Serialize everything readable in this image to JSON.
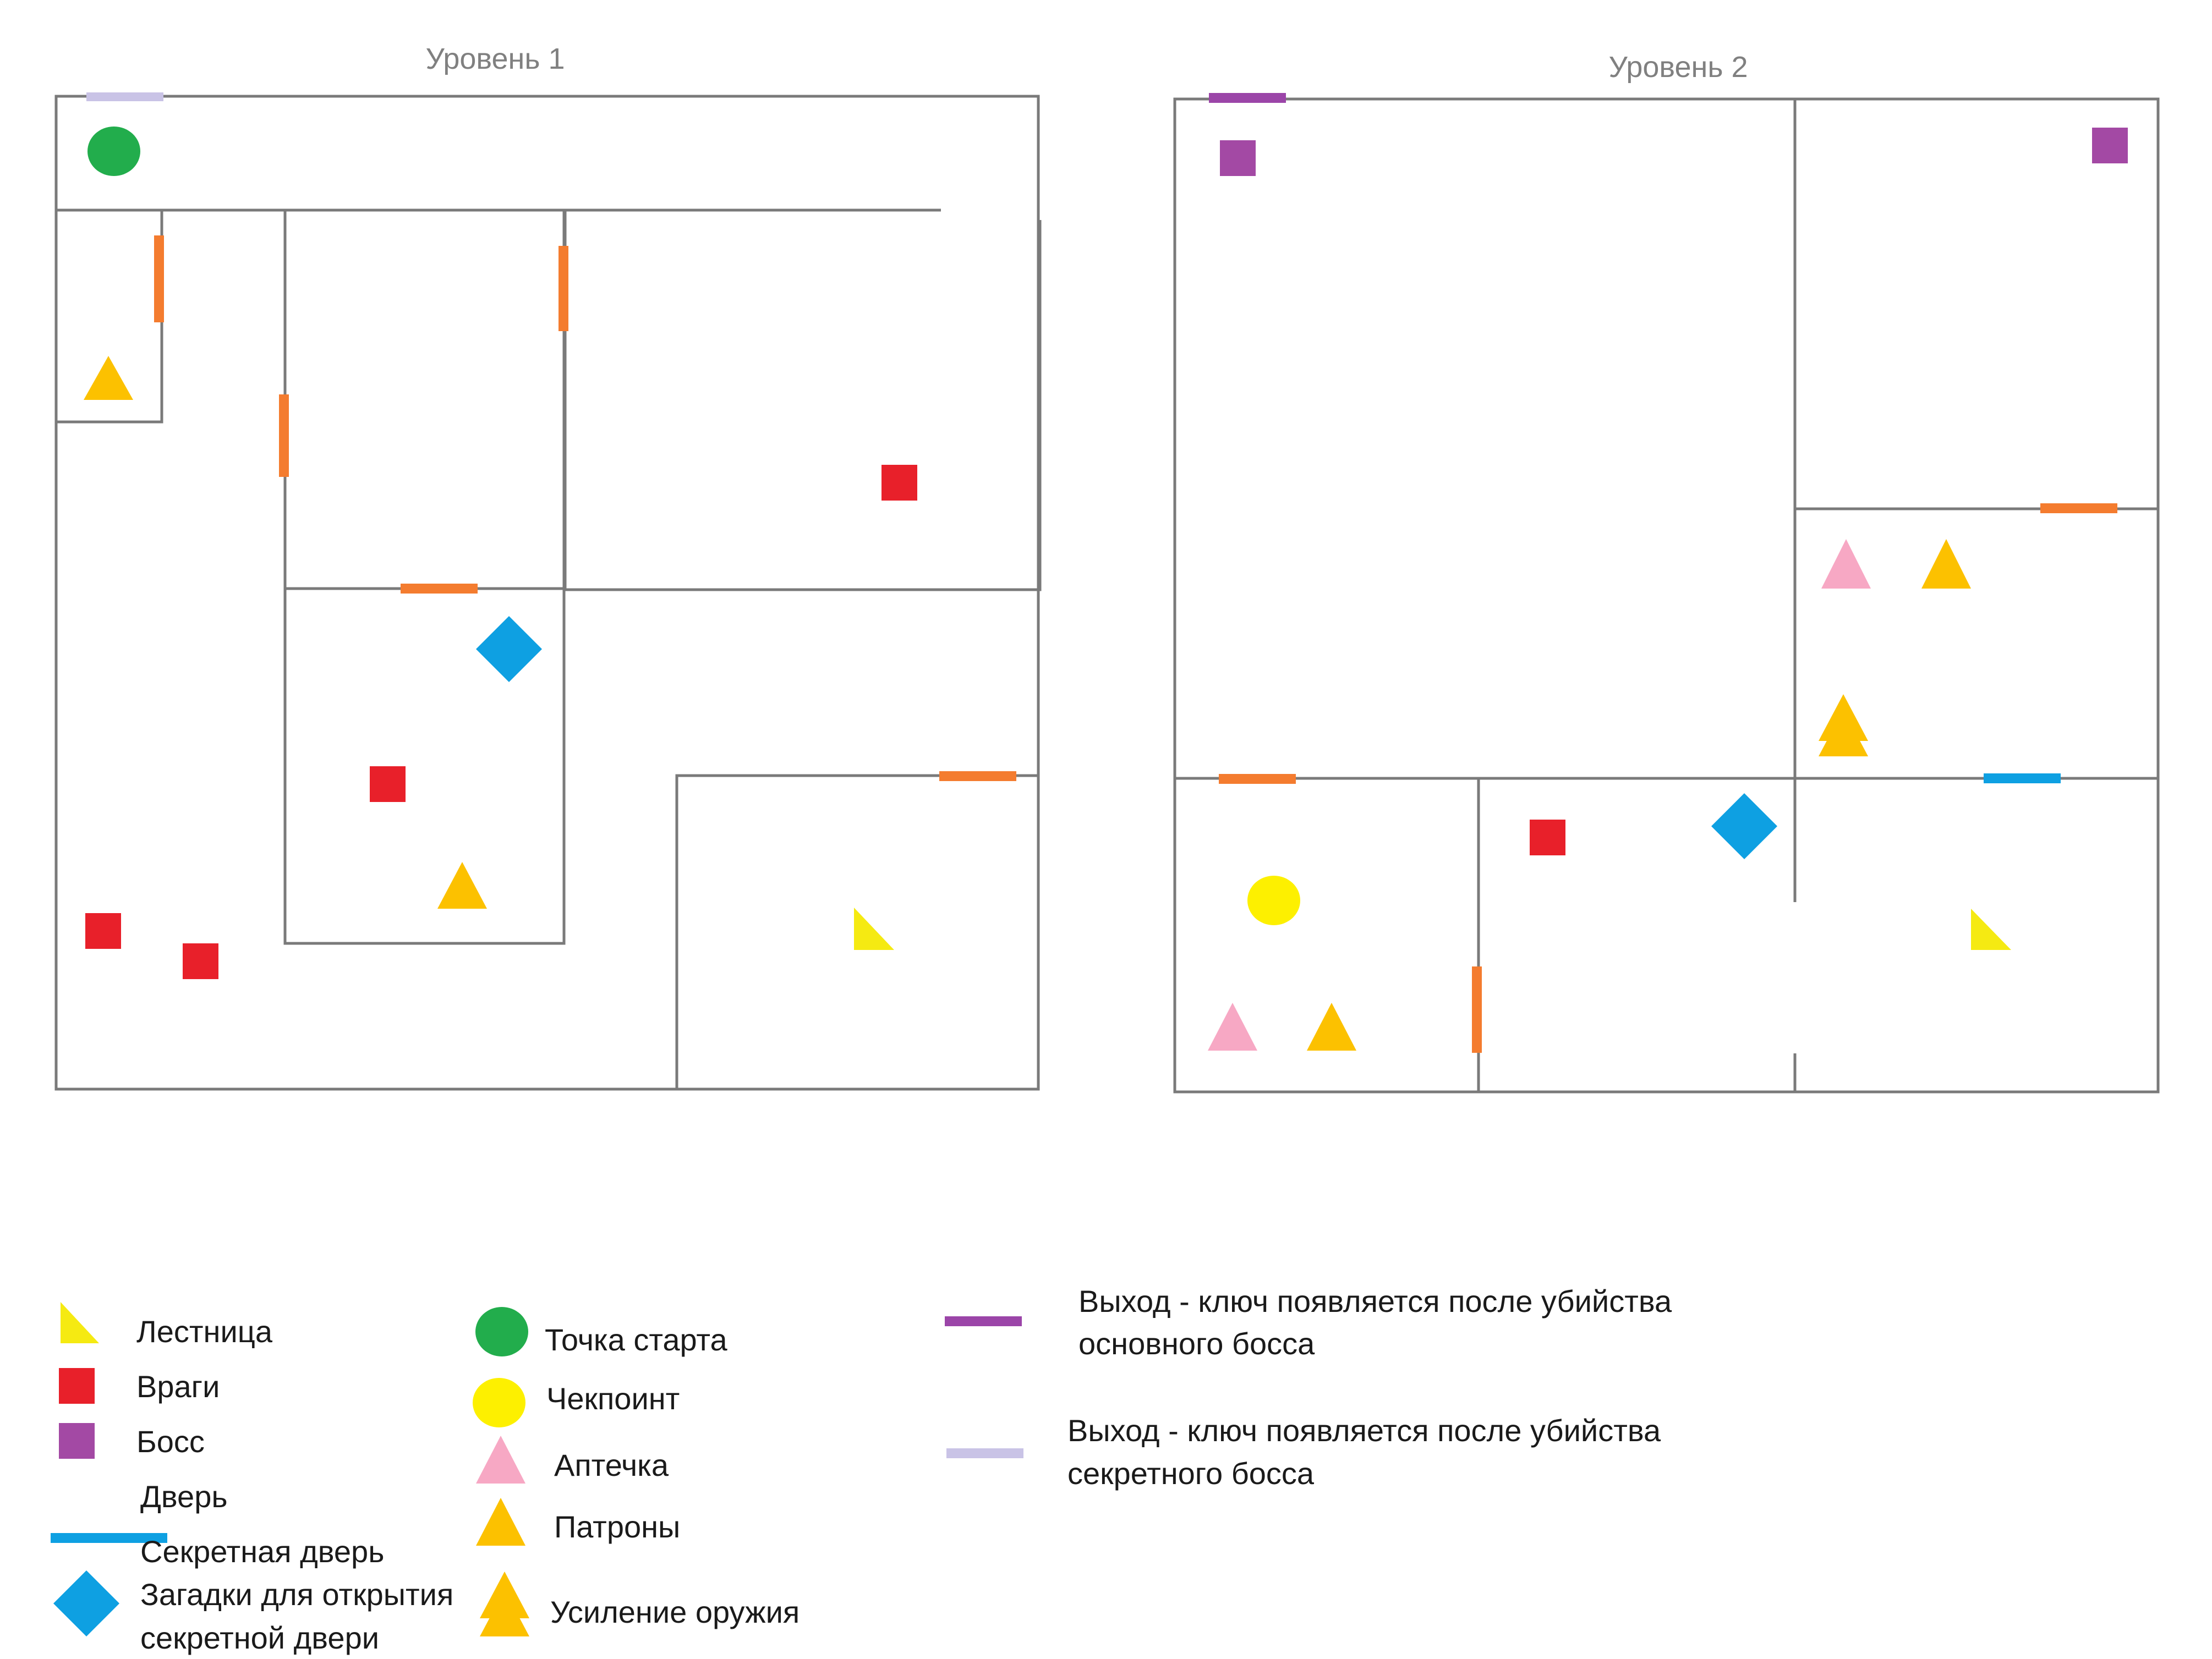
{
  "colors": {
    "wall": "#7a7a7a",
    "door": "#f47c2f",
    "secret_door": "#0ea0e2",
    "exit_main": "#9b45a8",
    "exit_secret": "#c9c3e6",
    "stairs": "#f5ea12",
    "enemy": "#e8202a",
    "boss": "#a349a4",
    "start": "#22ad4c",
    "checkpoint": "#fdf000",
    "medkit": "#f7a8c4",
    "ammo": "#fcc100",
    "puzzle": "#0ea0e2"
  },
  "levels": [
    {
      "title": "Уровень 1"
    },
    {
      "title": "Уровень 2"
    }
  ],
  "legend": {
    "stairs": "Лестница",
    "enemies": "Враги",
    "boss": "Босс",
    "door": "Дверь",
    "secret_door": "Секретная дверь",
    "puzzle_line1": "Загадки для открытия",
    "puzzle_line2": "секретной двери",
    "start": "Точка старта",
    "checkpoint": "Чекпоинт",
    "medkit": "Аптечка",
    "ammo": "Патроны",
    "weapon_upgrade": "Усиление оружия",
    "exit_main_line1": "Выход - ключ появляется после убийства",
    "exit_main_line2": "основного босса",
    "exit_secret_line1": "Выход - ключ появляется после убийства",
    "exit_secret_line2": "секретного босса"
  }
}
